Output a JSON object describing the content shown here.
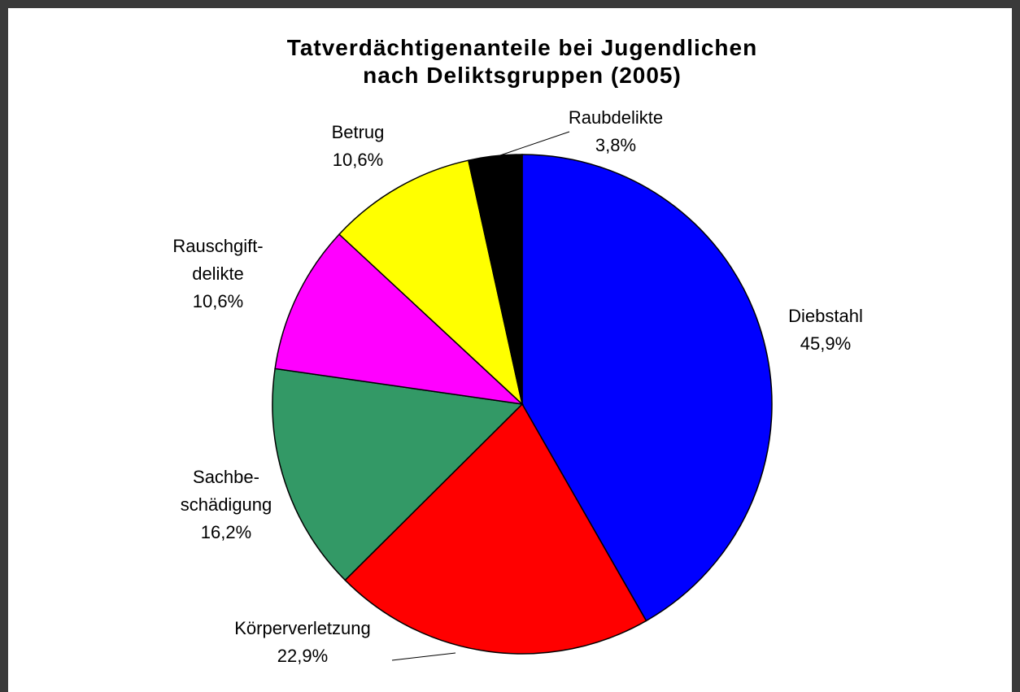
{
  "chart_data": {
    "type": "pie",
    "title": "Tatverdächtigenanteile bei Jugendlichen\nnach Deliktsgruppen (2005)",
    "categories": [
      "Diebstahl",
      "Körperverletzung",
      "Sachbe-\nschädigung",
      "Rauschgift-\ndelikte",
      "Betrug",
      "Raubdelikte"
    ],
    "values": [
      45.9,
      22.9,
      16.2,
      10.6,
      10.6,
      3.8
    ],
    "value_labels": [
      "45,9%",
      "22,9%",
      "16,2%",
      "10,6%",
      "10,6%",
      "3,8%"
    ],
    "colors": [
      "#0000ff",
      "#ff0000",
      "#339966",
      "#ff00ff",
      "#ffff00",
      "#000000"
    ]
  }
}
